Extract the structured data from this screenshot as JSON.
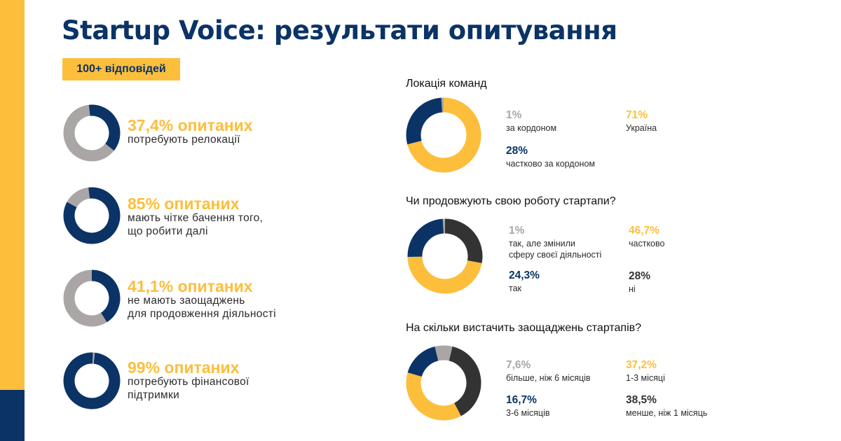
{
  "colors": {
    "yellow": "#FDBE3C",
    "navy": "#0B3366",
    "gray": "#AAA6A6",
    "dark": "#333333",
    "text": "#2b2b2b"
  },
  "header": {
    "title": "Startup Voice: результати опитування",
    "badge": "100+ відповідей"
  },
  "stats": [
    {
      "title": "37,4% опитаних",
      "lines": [
        "потребують релокації"
      ]
    },
    {
      "title": "85% опитаних",
      "lines": [
        "мають чітке бачення того,",
        "що робити далі"
      ]
    },
    {
      "title": "41,1% опитаних",
      "lines": [
        "не мають заощаджень",
        "для продовження діяльності"
      ]
    },
    {
      "title": "99% опитаних",
      "lines": [
        "потребують  фінансової",
        "підтримки"
      ]
    }
  ],
  "questions": [
    {
      "title": "Локація команд",
      "legend": [
        {
          "value": "1%",
          "lines": [
            "за кордоном"
          ],
          "color": "#AAA6A6"
        },
        {
          "value": "71%",
          "lines": [
            "Україна"
          ],
          "color": "#FDBE3C"
        },
        {
          "value": "28%",
          "lines": [
            "частково за кордоном"
          ],
          "color": "#0B3366"
        }
      ]
    },
    {
      "title": "Чи продовжують свою роботу стартапи?",
      "legend": [
        {
          "value": "1%",
          "lines": [
            "так, але змінили",
            "сферу своєї діяльності"
          ],
          "color": "#AAA6A6"
        },
        {
          "value": "46,7%",
          "lines": [
            "частково"
          ],
          "color": "#FDBE3C"
        },
        {
          "value": "24,3%",
          "lines": [
            "так"
          ],
          "color": "#0B3366"
        },
        {
          "value": "28%",
          "lines": [
            "ні"
          ],
          "color": "#333333"
        }
      ]
    },
    {
      "title": "На скільки вистачить заощаджень стартапів?",
      "legend": [
        {
          "value": "7,6%",
          "lines": [
            "більше, ніж 6 місяців"
          ],
          "color": "#AAA6A6"
        },
        {
          "value": "37,2%",
          "lines": [
            "1-3 місяці"
          ],
          "color": "#FDBE3C"
        },
        {
          "value": "16,7%",
          "lines": [
            "3-6 місяців"
          ],
          "color": "#0B3366"
        },
        {
          "value": "38,5%",
          "lines": [
            "менше, ніж 1 місяць"
          ],
          "color": "#333333"
        }
      ]
    }
  ],
  "chart_data": [
    {
      "type": "pie",
      "series": [
        {
          "values": [
            37.4,
            62.6
          ]
        }
      ],
      "colors": [
        "#0B3366",
        "#AAA6A6"
      ]
    },
    {
      "type": "pie",
      "series": [
        {
          "values": [
            85,
            15
          ]
        }
      ],
      "colors": [
        "#0B3366",
        "#AAA6A6"
      ]
    },
    {
      "type": "pie",
      "series": [
        {
          "values": [
            41.1,
            58.9
          ]
        }
      ],
      "colors": [
        "#0B3366",
        "#AAA6A6"
      ]
    },
    {
      "type": "pie",
      "series": [
        {
          "values": [
            99,
            1
          ]
        }
      ],
      "colors": [
        "#0B3366",
        "#AAA6A6"
      ]
    },
    {
      "type": "pie",
      "title": "Локація команд",
      "categories": [
        "за кордоном",
        "Україна",
        "частково за кордоном"
      ],
      "values": [
        1,
        71,
        28
      ],
      "colors": [
        "#AAA6A6",
        "#FDBE3C",
        "#0B3366"
      ]
    },
    {
      "type": "pie",
      "title": "Чи продовжують свою роботу стартапи?",
      "categories": [
        "так, але змінили сферу своєї діяльності",
        "ні",
        "частково",
        "так"
      ],
      "values": [
        1,
        28,
        46.7,
        24.3
      ],
      "colors": [
        "#AAA6A6",
        "#333333",
        "#FDBE3C",
        "#0B3366"
      ]
    },
    {
      "type": "pie",
      "title": "На скільки вистачить заощаджень стартапів?",
      "categories": [
        "більше, ніж 6 місяців",
        "менше, ніж 1 місяць",
        "1-3 місяці",
        "3-6 місяців"
      ],
      "values": [
        7.6,
        38.5,
        37.2,
        16.7
      ],
      "colors": [
        "#AAA6A6",
        "#333333",
        "#FDBE3C",
        "#0B3366"
      ]
    }
  ]
}
